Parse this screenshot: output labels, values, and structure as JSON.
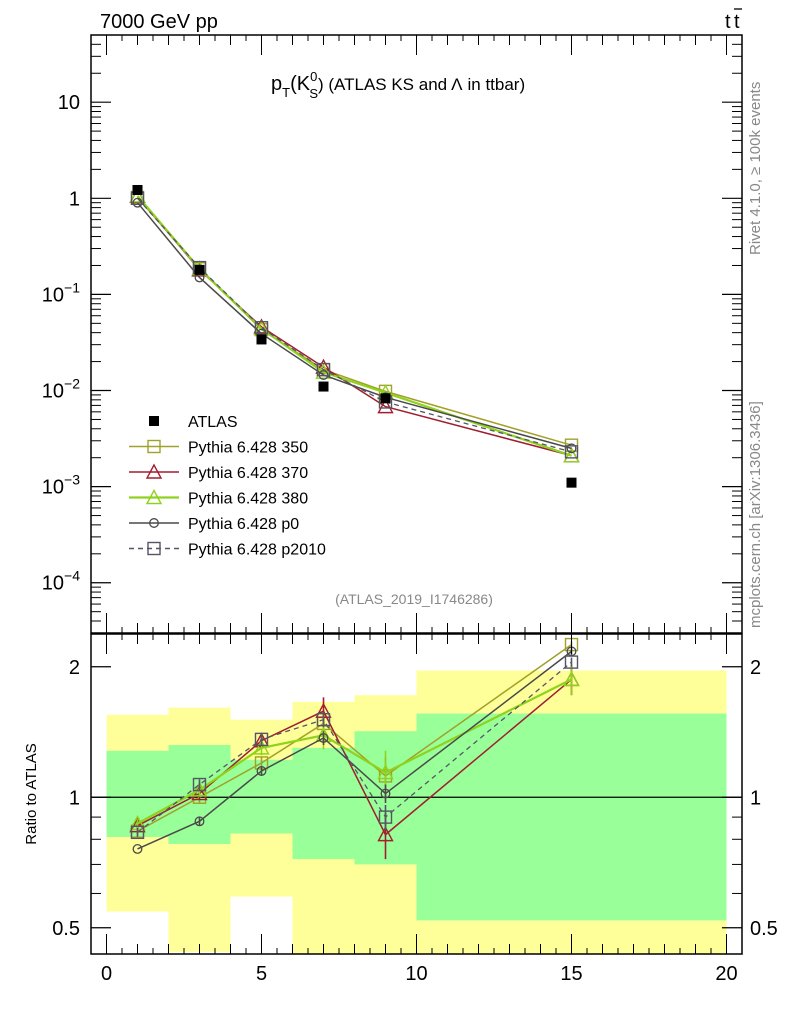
{
  "header": {
    "left": "7000 GeV pp",
    "right_main": "t",
    "right_bar": "t"
  },
  "side_texts": {
    "rivet": "Rivet 4.1.0, ≥ 100k events",
    "mcplots": "mcplots.cern.ch [arXiv:1306.3436]"
  },
  "chart_data": [
    {
      "type": "line",
      "panel": "main",
      "title": {
        "p": "p",
        "sub_t": "T",
        "open": "(K",
        "sup_0": "0",
        "sub_s": "S",
        "rest": ") (ATLAS KS and",
        "lambda": "Λ",
        "tail": "in ttbar)"
      },
      "analysis_label": "(ATLAS_2019_I1746286)",
      "xlabel": "",
      "ylabel": "",
      "yscale": "log",
      "xlim": [
        -0.5,
        20.5
      ],
      "ylim": [
        3e-05,
        50
      ],
      "y_ticks": [
        {
          "base": "10",
          "exp": "",
          "value": 10
        },
        {
          "base": "1",
          "exp": "",
          "value": 1
        },
        {
          "base": "10",
          "exp": "−1",
          "value": 0.1
        },
        {
          "base": "10",
          "exp": "−2",
          "value": 0.01
        },
        {
          "base": "10",
          "exp": "−3",
          "value": 0.001
        },
        {
          "base": "10",
          "exp": "−4",
          "value": 0.0001
        }
      ],
      "data_points": {
        "name": "ATLAS",
        "x": [
          1,
          3,
          5,
          7,
          9,
          15
        ],
        "y": [
          1.22,
          0.18,
          0.034,
          0.011,
          0.0083,
          0.0011
        ],
        "color": "#000000"
      },
      "series": [
        {
          "name": "Pythia 6.428 350",
          "color": "#a1a12a",
          "marker": "square",
          "dashed": false,
          "x": [
            1,
            3,
            5,
            7,
            9,
            15
          ],
          "y": [
            1.02,
            0.185,
            0.043,
            0.0165,
            0.0098,
            0.0027
          ]
        },
        {
          "name": "Pythia 6.428 370",
          "color": "#a01e30",
          "marker": "triangle",
          "dashed": false,
          "x": [
            1,
            3,
            5,
            7,
            9,
            15
          ],
          "y": [
            1.05,
            0.18,
            0.046,
            0.0175,
            0.0068,
            0.0021
          ]
        },
        {
          "name": "Pythia 6.428 380",
          "color": "#8fd21e",
          "marker": "triangle",
          "dashed": false,
          "x": [
            1,
            3,
            5,
            7,
            9,
            15
          ],
          "y": [
            1.06,
            0.185,
            0.044,
            0.0155,
            0.0095,
            0.0021
          ]
        },
        {
          "name": "Pythia 6.428 p0",
          "color": "#4a4a4a",
          "marker": "circle",
          "dashed": false,
          "x": [
            1,
            3,
            5,
            7,
            9,
            15
          ],
          "y": [
            0.9,
            0.15,
            0.039,
            0.0145,
            0.0085,
            0.0025
          ]
        },
        {
          "name": "Pythia 6.428 p2010",
          "color": "#555566",
          "marker": "square",
          "dashed": true,
          "x": [
            1,
            3,
            5,
            7,
            9,
            15
          ],
          "y": [
            1.0,
            0.19,
            0.045,
            0.0165,
            0.0076,
            0.0023
          ]
        }
      ],
      "legend_position": "bottom-left"
    },
    {
      "type": "line",
      "panel": "ratio",
      "ylabel": "Ratio to ATLAS",
      "yscale": "log",
      "xlim": [
        -0.5,
        20.5
      ],
      "ylim": [
        0.435,
        2.38
      ],
      "x_ticks": [
        0,
        5,
        10,
        15,
        20
      ],
      "x_tick_labels": [
        "0",
        "5",
        "10",
        "15",
        "20"
      ],
      "y_ticks": [
        0.5,
        1,
        2
      ],
      "y_tick_labels": [
        "0.5",
        "1",
        "2"
      ],
      "uncertainty_bands": {
        "x_edges": [
          0,
          2,
          4,
          6,
          8,
          10,
          20
        ],
        "yellow_low": [
          0.545,
          0.44,
          0.59,
          0.375,
          0.375,
          0.375
        ],
        "yellow_high": [
          1.55,
          1.61,
          1.51,
          1.66,
          1.72,
          1.96
        ],
        "green_low": [
          0.81,
          0.78,
          0.825,
          0.72,
          0.7,
          0.52
        ],
        "green_high": [
          1.28,
          1.32,
          1.22,
          1.3,
          1.42,
          1.56
        ],
        "yellow_color": "#ffff99",
        "green_color": "#99ff99"
      },
      "series": [
        {
          "name": "Pythia 6.428 350",
          "color": "#a1a12a",
          "marker": "square",
          "dashed": false,
          "x": [
            1,
            3,
            5,
            7,
            9,
            15
          ],
          "y": [
            0.835,
            1.0,
            1.2,
            1.48,
            1.12,
            2.25
          ],
          "err": [
            0.02,
            0.03,
            0.04,
            0.1,
            0.12,
            0.04
          ]
        },
        {
          "name": "Pythia 6.428 370",
          "color": "#a01e30",
          "marker": "triangle",
          "dashed": false,
          "x": [
            1,
            3,
            5,
            7,
            9,
            15
          ],
          "y": [
            0.86,
            1.02,
            1.35,
            1.58,
            0.82,
            1.87
          ],
          "err": [
            0.02,
            0.03,
            0.05,
            0.12,
            0.1,
            0.15
          ]
        },
        {
          "name": "Pythia 6.428 380",
          "color": "#8fd21e",
          "marker": "triangle",
          "dashed": false,
          "x": [
            1,
            3,
            5,
            7,
            9,
            15
          ],
          "y": [
            0.87,
            1.04,
            1.3,
            1.39,
            1.14,
            1.87
          ],
          "err": [
            0.02,
            0.03,
            0.05,
            0.1,
            0.14,
            0.15
          ]
        },
        {
          "name": "Pythia 6.428 p0",
          "color": "#4a4a4a",
          "marker": "circle",
          "dashed": false,
          "x": [
            1,
            3,
            5,
            7,
            9,
            15
          ],
          "y": [
            0.76,
            0.88,
            1.15,
            1.37,
            1.02,
            2.17
          ],
          "err": [
            0.0,
            0.02,
            0.03,
            0.05,
            0.05,
            0.05
          ]
        },
        {
          "name": "Pythia 6.428 p2010",
          "color": "#555566",
          "marker": "square",
          "dashed": true,
          "x": [
            1,
            3,
            5,
            7,
            9,
            15
          ],
          "y": [
            0.83,
            1.07,
            1.36,
            1.51,
            0.9,
            2.05
          ],
          "err": [
            0.02,
            0.03,
            0.04,
            0.06,
            0.06,
            0.05
          ]
        }
      ]
    }
  ]
}
